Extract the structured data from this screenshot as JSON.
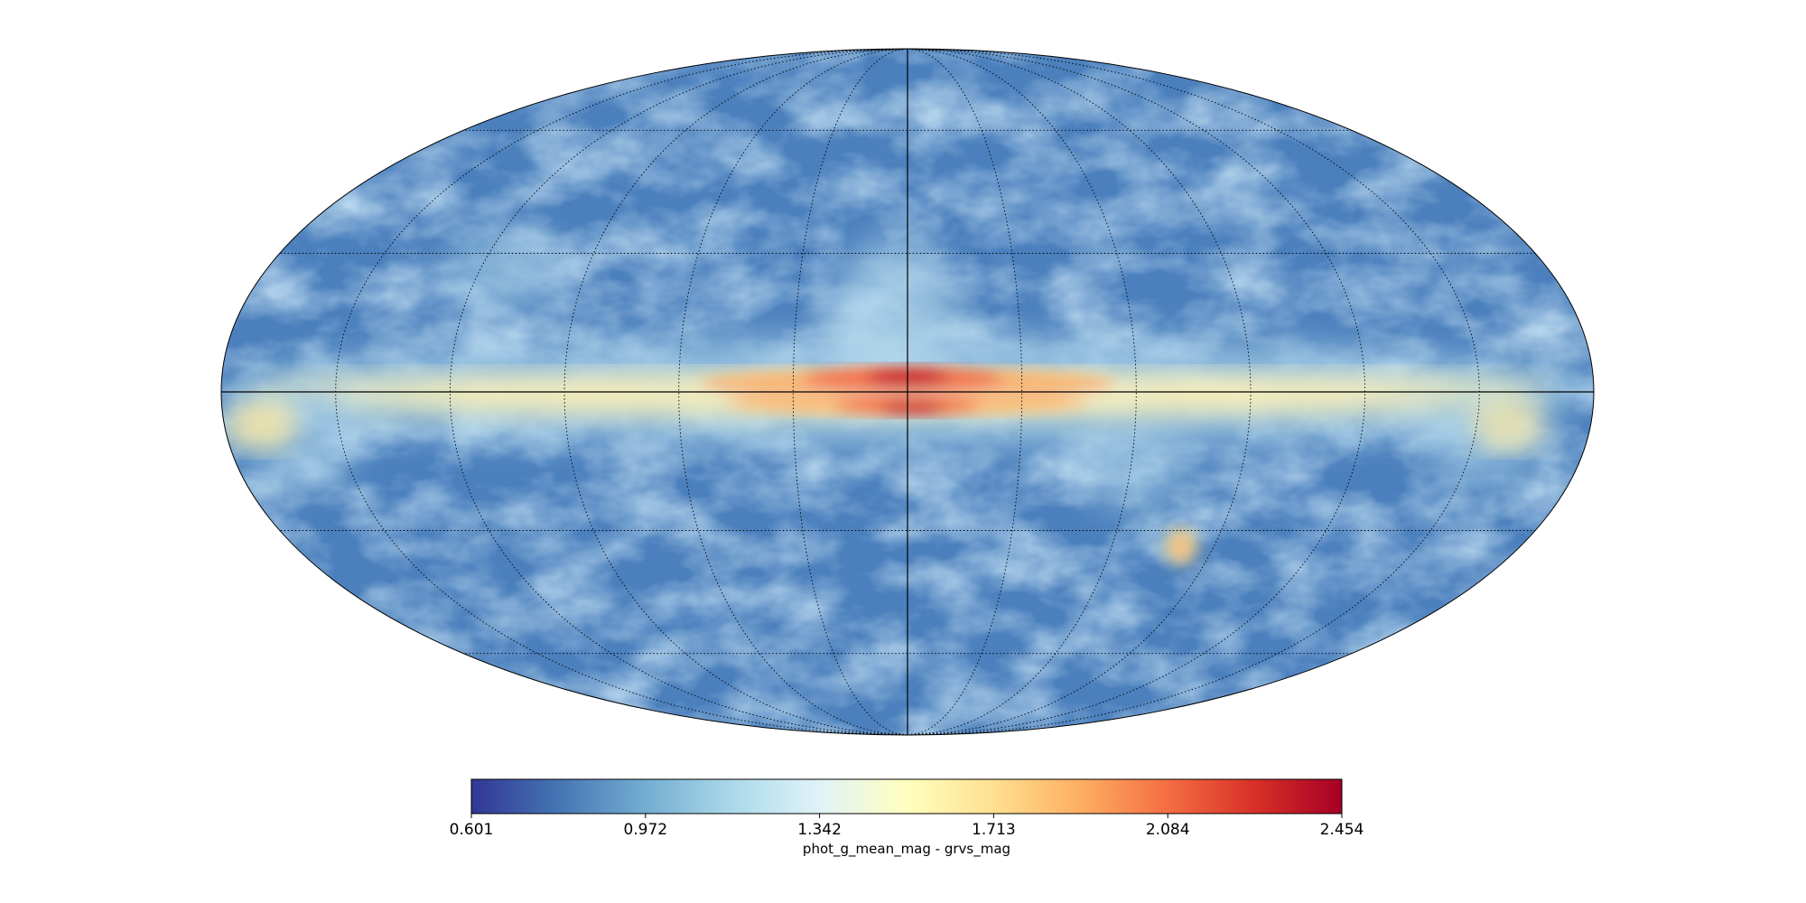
{
  "map": {
    "projection": "mollweide",
    "graticule": "dotted",
    "quantity": "phot_g_mean_mag - grvs_mag"
  },
  "colorbar": {
    "label": "phot_g_mean_mag - grvs_mag",
    "min": 0.601,
    "max": 2.454,
    "ticks": [
      "0.601",
      "0.972",
      "1.342",
      "1.713",
      "2.084",
      "2.454"
    ],
    "colormap": [
      "#313695",
      "#4575b4",
      "#74add1",
      "#abd9e9",
      "#e0f3f8",
      "#ffffbf",
      "#fee090",
      "#fdae61",
      "#f46d43",
      "#d73027",
      "#a50026"
    ]
  }
}
